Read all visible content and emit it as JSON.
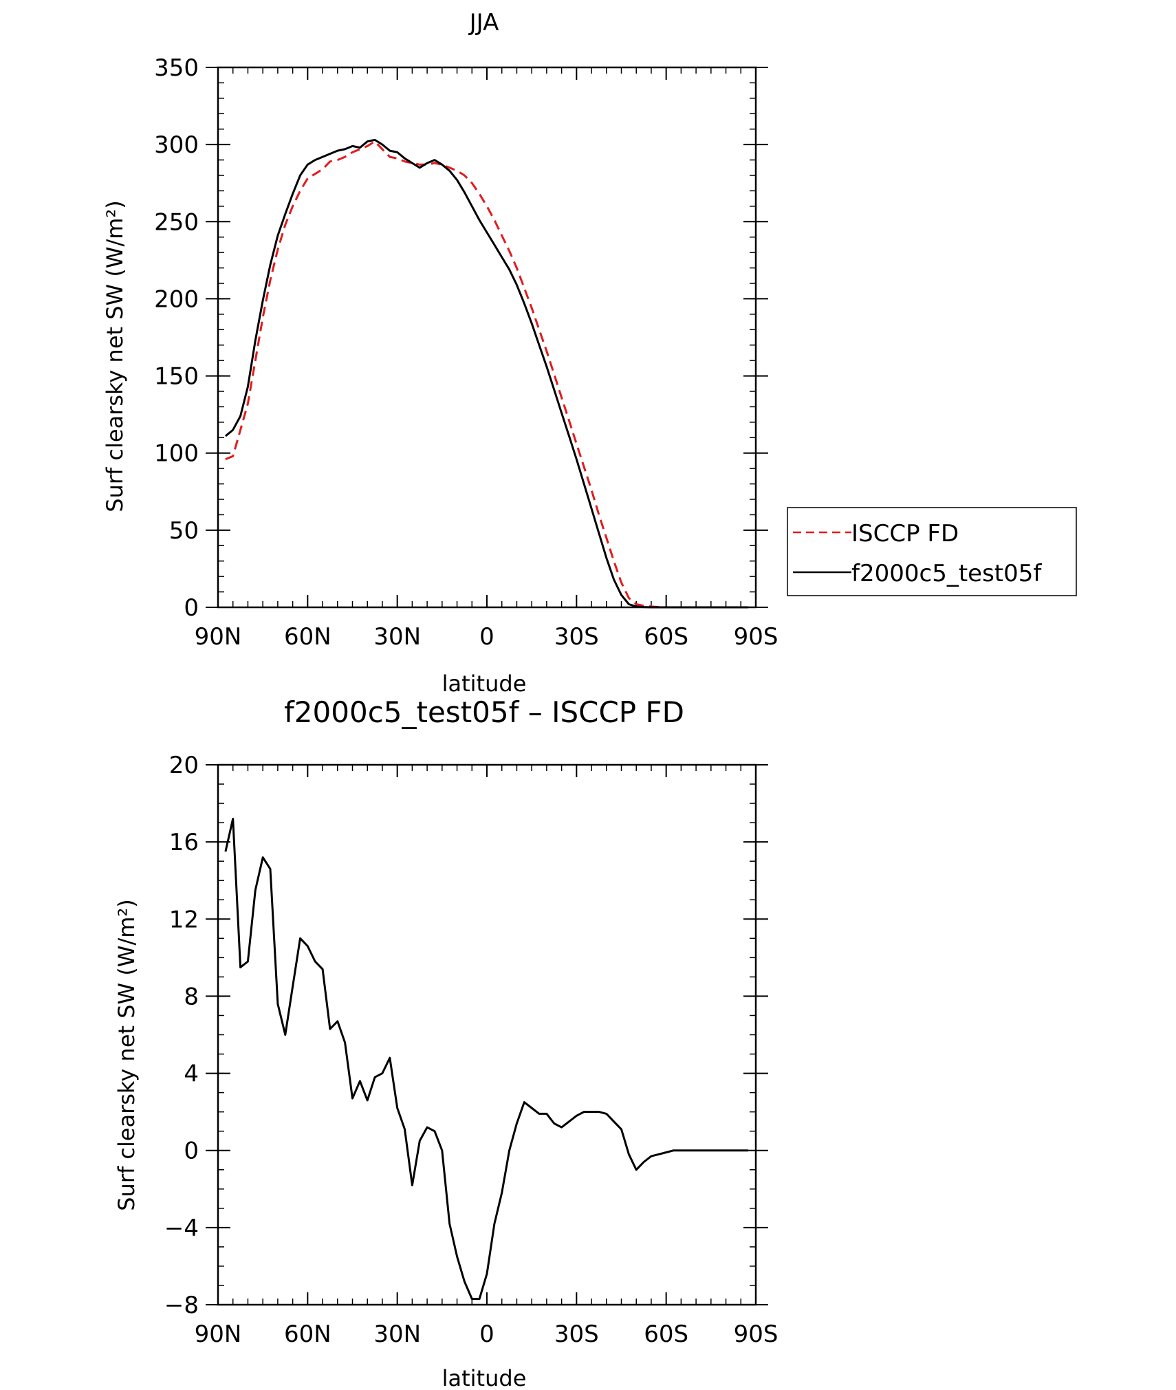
{
  "chart_data": [
    {
      "type": "line",
      "title": "JJA",
      "xlabel": "latitude",
      "ylabel": "Surf clearsky net SW (W/m²)",
      "xlim": [
        90,
        -90
      ],
      "ylim": [
        0,
        350
      ],
      "x_ticks": [
        {
          "value": 90,
          "label": "90N"
        },
        {
          "value": 60,
          "label": "60N"
        },
        {
          "value": 30,
          "label": "30N"
        },
        {
          "value": 0,
          "label": "0"
        },
        {
          "value": -30,
          "label": "30S"
        },
        {
          "value": -60,
          "label": "60S"
        },
        {
          "value": -90,
          "label": "90S"
        }
      ],
      "y_ticks": [
        {
          "value": 0,
          "label": "0"
        },
        {
          "value": 50,
          "label": "50"
        },
        {
          "value": 100,
          "label": "100"
        },
        {
          "value": 150,
          "label": "150"
        },
        {
          "value": 200,
          "label": "200"
        },
        {
          "value": 250,
          "label": "250"
        },
        {
          "value": 300,
          "label": "300"
        },
        {
          "value": 350,
          "label": "350"
        }
      ],
      "legend_position": "right",
      "series": [
        {
          "name": "ISCCP FD",
          "color": "#e41a1c",
          "dash": "dashed",
          "x": [
            87.5,
            85,
            82.5,
            80,
            77.5,
            75,
            72.5,
            70,
            67.5,
            65,
            62.5,
            60,
            57.5,
            55,
            52.5,
            50,
            47.5,
            45,
            42.5,
            40,
            37.5,
            35,
            32.5,
            30,
            27.5,
            25,
            22.5,
            20,
            17.5,
            15,
            12.5,
            10,
            7.5,
            5,
            2.5,
            0,
            -2.5,
            -5,
            -7.5,
            -10,
            -12.5,
            -15,
            -17.5,
            -20,
            -22.5,
            -25,
            -27.5,
            -30,
            -32.5,
            -35,
            -37.5,
            -40,
            -42.5,
            -45,
            -47.5,
            -50,
            -52.5,
            -55,
            -57.5,
            -60,
            -62.5,
            -65,
            -67.5,
            -70,
            -72.5,
            -75,
            -77.5,
            -80,
            -82.5,
            -85,
            -87.5
          ],
          "y": [
            96,
            98,
            115,
            132,
            160,
            188,
            212,
            232,
            248,
            260,
            270,
            278,
            281,
            284,
            289,
            290,
            292,
            295,
            297,
            299,
            302,
            297,
            292,
            291,
            289,
            288,
            287,
            287,
            288,
            287,
            285,
            283,
            280,
            275,
            268,
            260,
            251,
            241,
            231,
            220,
            207,
            194,
            180,
            166,
            151,
            136,
            121,
            106,
            91,
            76,
            60,
            45,
            30,
            16,
            6,
            2,
            1,
            0.5,
            0.2,
            0,
            0,
            0,
            0,
            0,
            0,
            0,
            0,
            0,
            0,
            0,
            0
          ]
        },
        {
          "name": "f2000c5_test05f",
          "color": "#000000",
          "dash": "solid",
          "x": [
            87.5,
            85,
            82.5,
            80,
            77.5,
            75,
            72.5,
            70,
            67.5,
            65,
            62.5,
            60,
            57.5,
            55,
            52.5,
            50,
            47.5,
            45,
            42.5,
            40,
            37.5,
            35,
            32.5,
            30,
            27.5,
            25,
            22.5,
            20,
            17.5,
            15,
            12.5,
            10,
            7.5,
            5,
            2.5,
            0,
            -2.5,
            -5,
            -7.5,
            -10,
            -12.5,
            -15,
            -17.5,
            -20,
            -22.5,
            -25,
            -27.5,
            -30,
            -32.5,
            -35,
            -37.5,
            -40,
            -42.5,
            -45,
            -47.5,
            -50,
            -52.5,
            -55,
            -57.5,
            -60,
            -62.5,
            -65,
            -67.5,
            -70,
            -72.5,
            -75,
            -77.5,
            -80,
            -82.5,
            -85,
            -87.5
          ],
          "y": [
            111,
            115,
            124,
            143,
            173,
            199,
            222,
            241,
            255,
            268,
            280,
            287,
            290,
            292,
            294,
            296,
            297,
            299,
            298,
            302,
            303,
            300,
            296,
            295,
            291,
            288,
            285,
            288,
            290,
            287,
            283,
            277,
            269,
            260,
            251,
            243,
            235,
            227,
            219,
            209,
            197,
            184,
            170,
            156,
            141,
            126,
            111,
            96,
            80,
            64,
            48,
            32,
            18,
            8,
            2,
            0.5,
            0.2,
            0,
            0,
            0,
            0,
            0,
            0,
            0,
            0,
            0,
            0,
            0,
            0,
            0,
            0
          ]
        }
      ]
    },
    {
      "type": "line",
      "title": "f2000c5_test05f – ISCCP FD",
      "xlabel": "latitude",
      "ylabel": "Surf clearsky net SW (W/m²)",
      "xlim": [
        90,
        -90
      ],
      "ylim": [
        -8,
        20
      ],
      "x_ticks": [
        {
          "value": 90,
          "label": "90N"
        },
        {
          "value": 60,
          "label": "60N"
        },
        {
          "value": 30,
          "label": "30N"
        },
        {
          "value": 0,
          "label": "0"
        },
        {
          "value": -30,
          "label": "30S"
        },
        {
          "value": -60,
          "label": "60S"
        },
        {
          "value": -90,
          "label": "90S"
        }
      ],
      "y_ticks": [
        {
          "value": -8,
          "label": "−8"
        },
        {
          "value": -4,
          "label": "−4"
        },
        {
          "value": 0,
          "label": "0"
        },
        {
          "value": 4,
          "label": "4"
        },
        {
          "value": 8,
          "label": "8"
        },
        {
          "value": 12,
          "label": "12"
        },
        {
          "value": 16,
          "label": "16"
        },
        {
          "value": 20,
          "label": "20"
        }
      ],
      "series": [
        {
          "color": "#000000",
          "dash": "solid",
          "x": [
            87.5,
            85,
            82.5,
            80,
            77.5,
            75,
            72.5,
            70,
            67.5,
            65,
            62.5,
            60,
            57.5,
            55,
            52.5,
            50,
            47.5,
            45,
            42.5,
            40,
            37.5,
            35,
            32.5,
            30,
            27.5,
            25,
            22.5,
            20,
            17.5,
            15,
            12.5,
            10,
            7.5,
            5,
            2.5,
            0,
            -2.5,
            -5,
            -7.5,
            -10,
            -12.5,
            -15,
            -17.5,
            -20,
            -22.5,
            -25,
            -27.5,
            -30,
            -32.5,
            -35,
            -37.5,
            -40,
            -42.5,
            -45,
            -47.5,
            -50,
            -52.5,
            -55,
            -57.5,
            -60,
            -62.5,
            -65,
            -67.5,
            -70,
            -72.5,
            -75,
            -77.5,
            -80,
            -82.5,
            -85,
            -87.5
          ],
          "y": [
            15.5,
            17.2,
            9.5,
            9.8,
            13.5,
            15.2,
            14.6,
            7.6,
            6.0,
            8.5,
            11.0,
            10.6,
            9.8,
            9.4,
            6.3,
            6.7,
            5.6,
            2.7,
            3.6,
            2.6,
            3.8,
            4.0,
            4.8,
            2.2,
            1.1,
            -1.8,
            0.5,
            1.2,
            1.0,
            0.0,
            -3.8,
            -5.5,
            -6.8,
            -7.7,
            -7.7,
            -6.4,
            -3.8,
            -2.2,
            0.0,
            1.4,
            2.5,
            2.2,
            1.9,
            1.9,
            1.4,
            1.2,
            1.5,
            1.8,
            2.0,
            2.0,
            2.0,
            1.9,
            1.5,
            1.1,
            -0.2,
            -1.0,
            -0.6,
            -0.3,
            -0.2,
            -0.1,
            0,
            0,
            0,
            0,
            0,
            0,
            0,
            0,
            0,
            0,
            0
          ]
        }
      ]
    }
  ]
}
